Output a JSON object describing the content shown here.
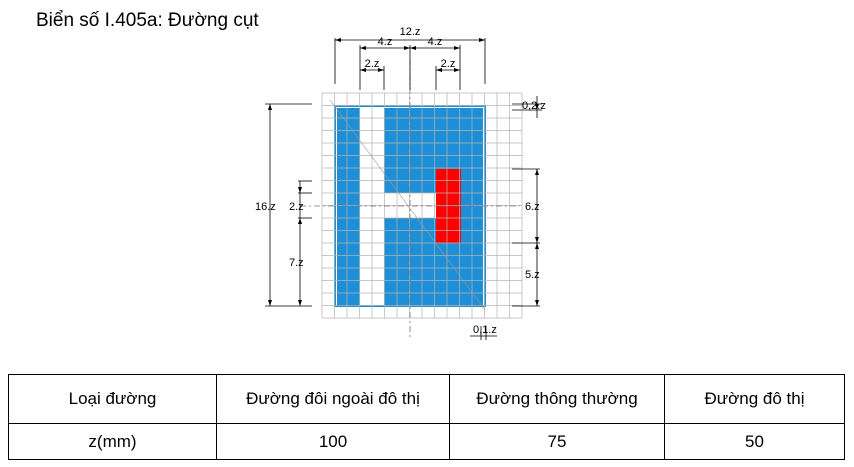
{
  "title": "Biển số I.405a: Đường cụt",
  "colors": {
    "sign_blue": "#1e8fd6",
    "sign_red": "#ff0000",
    "grid": "#b4b4b4",
    "dim_line": "#000000"
  },
  "dimensions": {
    "total_width": "12.z",
    "half_left": "4.z",
    "half_right": "4.z",
    "bar_left": "2.z",
    "bar_right": "2.z",
    "border": "0,2.z",
    "height": "16.z",
    "gap": "2.z",
    "lower": "7.z",
    "red_height": "6.z",
    "bottom_right": "5.z",
    "inner_border": "0,1.z"
  },
  "table": {
    "headers": [
      "Loại đường",
      "Đường đôi ngoài đô thị",
      "Đường thông thường",
      "Đường đô thị"
    ],
    "row": [
      "z(mm)",
      "100",
      "75",
      "50"
    ]
  }
}
